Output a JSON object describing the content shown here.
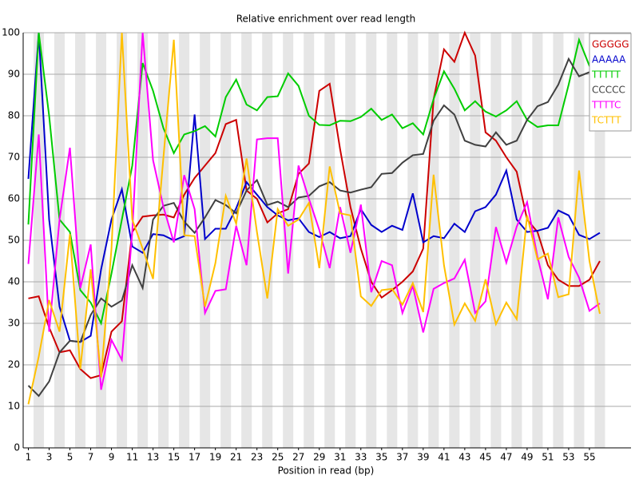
{
  "chart_data": {
    "type": "line",
    "title": "Relative enrichment over read length",
    "xlabel": "Position in read (bp)",
    "x": [
      1,
      2,
      3,
      4,
      5,
      6,
      7,
      8,
      9,
      10,
      11,
      12,
      13,
      14,
      15,
      16,
      17,
      18,
      19,
      20,
      21,
      22,
      23,
      24,
      25,
      26,
      27,
      28,
      29,
      30,
      31,
      32,
      33,
      34,
      35,
      36,
      37,
      38,
      39,
      40,
      41,
      42,
      43,
      44,
      45,
      46,
      47,
      48,
      49,
      50,
      51,
      52,
      53,
      54,
      55,
      56
    ],
    "xlim": [
      0.5,
      59
    ],
    "xticks": [
      1,
      3,
      5,
      7,
      9,
      11,
      13,
      15,
      17,
      19,
      21,
      23,
      25,
      27,
      29,
      31,
      33,
      35,
      37,
      39,
      41,
      43,
      45,
      47,
      49,
      51,
      53,
      55
    ],
    "ylim": [
      0,
      100
    ],
    "yticks": [
      0,
      10,
      20,
      30,
      40,
      50,
      60,
      70,
      80,
      90,
      100
    ],
    "grid": true,
    "legend": "top-right",
    "series": [
      {
        "name": "GGGGG",
        "color": "#cc0000",
        "values": [
          36,
          36.5,
          29,
          23,
          23.5,
          19,
          16.8,
          17.5,
          28,
          30.5,
          52,
          55.7,
          56,
          56.2,
          55.5,
          61,
          65,
          68,
          71,
          78,
          79,
          62,
          60,
          54.3,
          56.5,
          57.5,
          66,
          68.5,
          86,
          87.7,
          72,
          58,
          48,
          40,
          36.2,
          38,
          40,
          42.5,
          48,
          84,
          96,
          93,
          100,
          94.5,
          76,
          74,
          70,
          66.5,
          55,
          52,
          44,
          40.5,
          39,
          39,
          40.5,
          45
        ]
      },
      {
        "name": "AAAAA",
        "color": "#0000cc",
        "values": [
          64.8,
          100,
          55,
          34,
          25.8,
          25.5,
          27,
          43,
          55,
          62.3,
          48.5,
          47,
          51.5,
          51.2,
          50,
          51,
          80.3,
          50.3,
          52.8,
          52.8,
          57.7,
          64,
          61,
          58,
          56,
          54.8,
          55.3,
          52,
          50.8,
          52,
          50.5,
          51,
          57.5,
          53.7,
          52,
          53.5,
          52.5,
          61.3,
          49.5,
          51,
          50.5,
          54,
          52,
          57,
          58,
          61,
          66.8,
          55,
          52,
          52.3,
          53,
          57.2,
          56,
          51.3,
          50.3,
          51.8
        ]
      },
      {
        "name": "TTTTT",
        "color": "#00cc00",
        "values": [
          53.8,
          100,
          80,
          55,
          52,
          38,
          35,
          30,
          42,
          55,
          68,
          92.7,
          86,
          77,
          71,
          75.5,
          76.3,
          77.5,
          75,
          84.5,
          88.7,
          82.7,
          81.3,
          84.5,
          84.7,
          90.2,
          87.2,
          80,
          77.8,
          77.7,
          78.8,
          78.7,
          79.7,
          81.7,
          79,
          80.3,
          77,
          78.2,
          75.5,
          84,
          90.7,
          86.5,
          81.3,
          83.5,
          81,
          79.8,
          81.3,
          83.5,
          79,
          77.3,
          77.7,
          77.7,
          87.5,
          98.3,
          92,
          91
        ]
      },
      {
        "name": "CCCCC",
        "color": "#404040",
        "values": [
          15,
          12.5,
          16,
          23,
          25.8,
          25.5,
          32,
          36,
          34,
          35.5,
          44,
          38.5,
          55,
          58.3,
          59,
          54.5,
          51.8,
          55.5,
          59.7,
          58.5,
          56.5,
          62,
          64.5,
          58.5,
          59.3,
          58,
          60.3,
          60.7,
          63,
          64,
          62,
          61.5,
          62.2,
          62.8,
          66,
          66.2,
          68.7,
          70.5,
          70.8,
          78.8,
          82.5,
          80.3,
          74,
          73,
          72.6,
          76,
          73,
          74,
          79,
          82.3,
          83.3,
          87.5,
          93.7,
          89.5,
          90.5,
          91
        ]
      },
      {
        "name": "TTTTC",
        "color": "#ff00ff",
        "values": [
          44.3,
          75.5,
          28,
          55,
          72.3,
          38.5,
          49,
          14,
          26,
          21.2,
          52,
          100,
          69.3,
          58,
          49.5,
          65.7,
          57.5,
          32.5,
          37.8,
          38.2,
          53.5,
          44,
          74.3,
          74.6,
          74.6,
          42,
          68,
          60,
          52.5,
          43.3,
          58,
          47,
          58.6,
          37.5,
          45,
          44,
          32.5,
          39,
          27.8,
          38.3,
          39.7,
          40.8,
          45.3,
          32.5,
          35.3,
          53.2,
          44.6,
          53.3,
          59.2,
          46,
          35.8,
          55.5,
          46,
          41,
          33,
          34.8
        ]
      },
      {
        "name": "TCTTT",
        "color": "#ffc000",
        "values": [
          10.5,
          22,
          35.6,
          28,
          51.5,
          19,
          43,
          17,
          48,
          100,
          55,
          48,
          40.7,
          70,
          98.3,
          51.2,
          51,
          34,
          44.5,
          60.7,
          54,
          69.7,
          52,
          36,
          57.5,
          53.5,
          55,
          59,
          43.3,
          67.8,
          56.5,
          56,
          36.5,
          34.2,
          38,
          38.3,
          34.5,
          39.7,
          32.7,
          65.8,
          44,
          29.7,
          34.8,
          30.6,
          40.6,
          29.8,
          35,
          31,
          56,
          45.4,
          46.8,
          36.3,
          37,
          66.8,
          45,
          32.3
        ]
      }
    ]
  }
}
